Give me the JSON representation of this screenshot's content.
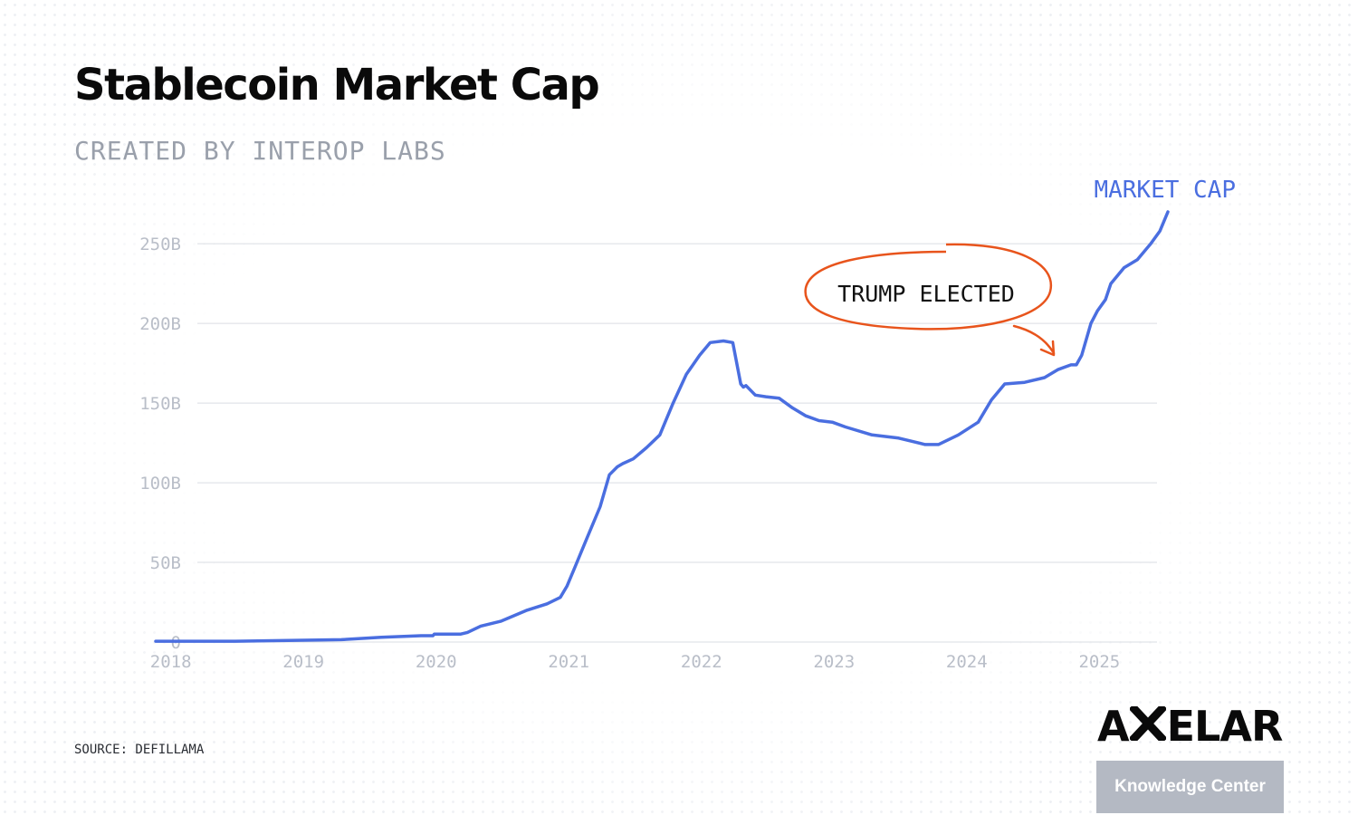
{
  "header": {
    "title": "Stablecoin Market Cap",
    "subtitle": "CREATED BY INTEROP LABS"
  },
  "footer": {
    "source": "SOURCE: DEFILLAMA",
    "brand_left": "A",
    "brand_right": "ELAR",
    "brand_tagline": "Knowledge Center"
  },
  "colors": {
    "line": "#4a6ee0",
    "annotation": "#e8541c",
    "axis_text": "#b9bec8",
    "grid": "#dadde3"
  },
  "chart_data": {
    "type": "line",
    "title": "Stablecoin Market Cap",
    "subtitle": "CREATED BY INTEROP LABS",
    "xlabel": "",
    "ylabel": "",
    "xlim": [
      2017.9,
      2025.53
    ],
    "ylim": [
      0,
      270
    ],
    "grid": true,
    "y_ticks": [
      0,
      50,
      100,
      150,
      200,
      250
    ],
    "y_tick_labels": [
      "0",
      "50B",
      "100B",
      "150B",
      "200B",
      "250B"
    ],
    "x_ticks": [
      2018,
      2019,
      2020,
      2021,
      2022,
      2023,
      2024,
      2025
    ],
    "x_tick_labels": [
      "2018",
      "2019",
      "2020",
      "2021",
      "2022",
      "2023",
      "2024",
      "2025"
    ],
    "series": [
      {
        "name": "MARKET CAP",
        "x": [
          2017.9,
          2018.5,
          2018.9,
          2019.3,
          2019.6,
          2019.9,
          2019.99,
          2020.0,
          2020.2,
          2020.25,
          2020.35,
          2020.5,
          2020.7,
          2020.85,
          2020.95,
          2021.0,
          2021.05,
          2021.15,
          2021.25,
          2021.32,
          2021.38,
          2021.42,
          2021.5,
          2021.6,
          2021.7,
          2021.8,
          2021.9,
          2022.0,
          2022.08,
          2022.18,
          2022.25,
          2022.31,
          2022.33,
          2022.35,
          2022.42,
          2022.5,
          2022.6,
          2022.7,
          2022.8,
          2022.9,
          2023.0,
          2023.1,
          2023.3,
          2023.5,
          2023.6,
          2023.7,
          2023.8,
          2023.95,
          2024.1,
          2024.2,
          2024.3,
          2024.45,
          2024.6,
          2024.7,
          2024.8,
          2024.84,
          2024.88,
          2024.95,
          2025.0,
          2025.06,
          2025.1,
          2025.2,
          2025.3,
          2025.4,
          2025.47,
          2025.53
        ],
        "values": [
          0.5,
          0.5,
          1,
          1.5,
          3,
          4,
          4,
          5,
          5,
          6,
          10,
          13,
          20,
          24,
          28,
          35,
          45,
          65,
          85,
          105,
          110,
          112,
          115,
          122,
          130,
          150,
          168,
          180,
          188,
          189,
          188,
          162,
          160,
          161,
          155,
          154,
          153,
          147,
          142,
          139,
          138,
          135,
          130,
          128,
          126,
          124,
          124,
          130,
          138,
          152,
          162,
          163,
          166,
          171,
          174,
          174,
          180,
          200,
          208,
          215,
          225,
          235,
          240,
          250,
          258,
          270
        ]
      }
    ],
    "annotations": [
      {
        "text": "TRUMP ELECTED",
        "x": 2024.85,
        "y": 178
      }
    ],
    "series_label": "MARKET CAP"
  }
}
